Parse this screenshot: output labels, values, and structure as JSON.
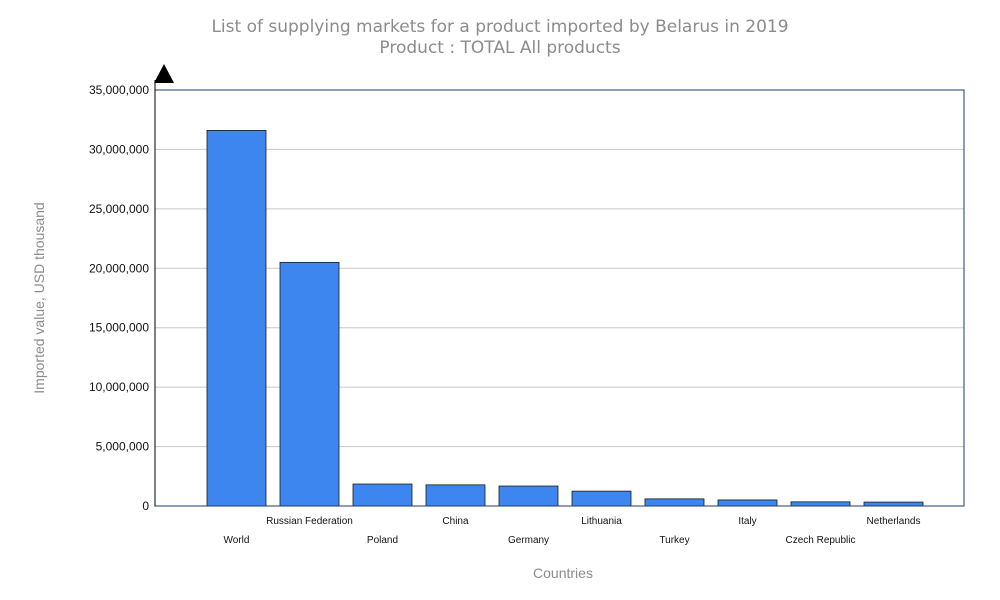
{
  "chart_data": {
    "type": "bar",
    "title": "List of supplying markets for a product imported by Belarus in 2019",
    "subtitle": "Product : TOTAL All products",
    "xlabel": "Countries",
    "ylabel": "Imported value, USD thousand",
    "categories": [
      "World",
      "Russian Federation",
      "Poland",
      "China",
      "Germany",
      "Lithuania",
      "Turkey",
      "Italy",
      "Czech Republic",
      "Netherlands"
    ],
    "values": [
      31600000,
      20500000,
      1850000,
      1780000,
      1680000,
      1250000,
      600000,
      510000,
      350000,
      330000
    ],
    "ylim": [
      0,
      35000000
    ],
    "yticks": [
      0,
      5000000,
      10000000,
      15000000,
      20000000,
      25000000,
      30000000,
      35000000
    ],
    "ytick_labels": [
      "0",
      "5,000,000",
      "10,000,000",
      "15,000,000",
      "20,000,000",
      "25,000,000",
      "30,000,000",
      "35,000,000"
    ],
    "grid": true,
    "colors": {
      "bar": "#3d86f0",
      "bar_edge": "#1a1a1a",
      "grid": "#c8c8c8",
      "frame": "#1f3a68",
      "title": "#8c8c8c"
    }
  }
}
